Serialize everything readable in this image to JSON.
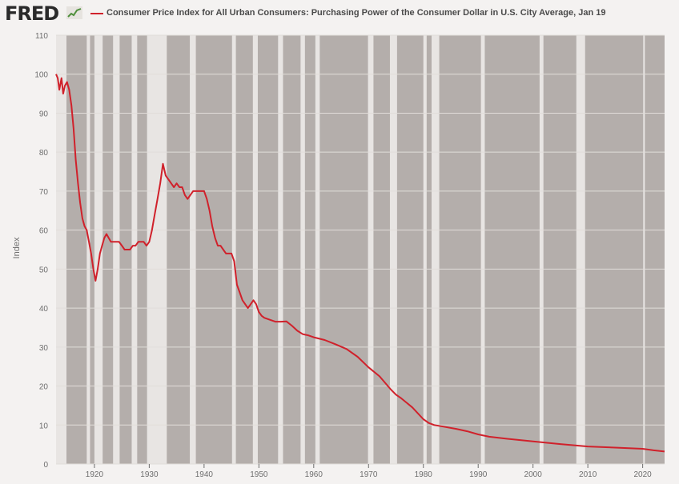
{
  "brand": {
    "logo_text": "FRED",
    "logo_icon": "fred-chart-icon"
  },
  "colors": {
    "plot_bg": "#b4aeab",
    "recession": "#e8e5e3",
    "line": "#d0212b",
    "grid": "#e1ddda",
    "axis_text": "#6e6e6e"
  },
  "chart_data": {
    "type": "line",
    "title": "Consumer Price Index for All Urban Consumers: Purchasing Power of the Consumer Dollar in U.S. City Average, Jan 19",
    "ylabel": "Index",
    "xlabel": "",
    "xlim": [
      1913,
      2024
    ],
    "ylim": [
      0,
      110
    ],
    "yticks": [
      0,
      10,
      20,
      30,
      40,
      50,
      60,
      70,
      80,
      90,
      100,
      110
    ],
    "xticks": [
      1920,
      1930,
      1940,
      1950,
      1960,
      1970,
      1980,
      1990,
      2000,
      2010,
      2020
    ],
    "grid": true,
    "legend": "top",
    "recessions": [
      [
        1913.0,
        1914.9
      ],
      [
        1918.6,
        1919.2
      ],
      [
        1920.0,
        1921.5
      ],
      [
        1923.4,
        1924.6
      ],
      [
        1926.8,
        1927.8
      ],
      [
        1929.6,
        1933.2
      ],
      [
        1937.4,
        1938.5
      ],
      [
        1945.1,
        1945.8
      ],
      [
        1948.9,
        1949.8
      ],
      [
        1953.5,
        1954.4
      ],
      [
        1957.6,
        1958.4
      ],
      [
        1960.3,
        1961.1
      ],
      [
        1969.9,
        1970.9
      ],
      [
        1973.9,
        1975.2
      ],
      [
        1980.0,
        1980.6
      ],
      [
        1981.5,
        1982.9
      ],
      [
        1990.5,
        1991.2
      ],
      [
        2001.2,
        2001.9
      ],
      [
        2007.9,
        2009.5
      ],
      [
        2020.1,
        2020.4
      ]
    ],
    "series": [
      {
        "x": [
          1913.0,
          1913.3,
          1913.6,
          1914.0,
          1914.3,
          1914.6,
          1915.0,
          1915.4,
          1915.8,
          1916.2,
          1916.6,
          1917.0,
          1917.4,
          1917.8,
          1918.2,
          1918.6,
          1919.0,
          1919.4,
          1919.8,
          1920.2,
          1920.6,
          1921.0,
          1921.4,
          1921.8,
          1922.2,
          1922.6,
          1923.0,
          1923.5,
          1924.0,
          1924.5,
          1925.0,
          1925.5,
          1926.0,
          1926.5,
          1927.0,
          1927.5,
          1928.0,
          1928.5,
          1929.0,
          1929.5,
          1930.0,
          1930.5,
          1931.0,
          1931.5,
          1932.0,
          1932.5,
          1933.0,
          1933.5,
          1934.0,
          1934.5,
          1935.0,
          1935.5,
          1936.0,
          1936.5,
          1937.0,
          1937.5,
          1938.0,
          1938.5,
          1939.0,
          1939.5,
          1940.0,
          1940.5,
          1941.0,
          1941.5,
          1942.0,
          1942.5,
          1943.0,
          1943.5,
          1944.0,
          1944.5,
          1945.0,
          1945.5,
          1946.0,
          1946.5,
          1947.0,
          1947.5,
          1948.0,
          1948.5,
          1949.0,
          1949.5,
          1950.0,
          1950.5,
          1951.0,
          1952.0,
          1953.0,
          1954.0,
          1955.0,
          1956.0,
          1957.0,
          1958.0,
          1959.0,
          1960.0,
          1962.0,
          1964.0,
          1966.0,
          1968.0,
          1970.0,
          1972.0,
          1974.0,
          1975.0,
          1976.0,
          1978.0,
          1980.0,
          1981.0,
          1982.0,
          1984.0,
          1986.0,
          1988.0,
          1990.0,
          1992.0,
          1995.0,
          2000.0,
          2005.0,
          2010.0,
          2015.0,
          2020.0,
          2022.0,
          2024.0
        ],
        "values": [
          100,
          99,
          96,
          99,
          95,
          97,
          98,
          96,
          92,
          86,
          78,
          72,
          67,
          63,
          61,
          60,
          57,
          54,
          50,
          47,
          50,
          54,
          56,
          58,
          59,
          58,
          57,
          57,
          57,
          57,
          56,
          55,
          55,
          55,
          56,
          56,
          57,
          57,
          57,
          56,
          57,
          60,
          64,
          68,
          72,
          77,
          74,
          73,
          72,
          71,
          72,
          71,
          71,
          69,
          68,
          69,
          70,
          70,
          70,
          70,
          70,
          68,
          65,
          61,
          58,
          56,
          56,
          55,
          54,
          54,
          54,
          52,
          46,
          44,
          42,
          41,
          40,
          41,
          42,
          41,
          39,
          38,
          37.5,
          37,
          36.5,
          36.5,
          36.6,
          35.5,
          34.2,
          33.3,
          33.0,
          32.5,
          31.8,
          30.7,
          29.5,
          27.5,
          24.8,
          22.5,
          19.2,
          17.8,
          16.8,
          14.5,
          11.5,
          10.5,
          10.0,
          9.5,
          9.0,
          8.4,
          7.6,
          7.0,
          6.5,
          5.8,
          5.1,
          4.5,
          4.2,
          3.9,
          3.5,
          3.2
        ]
      }
    ]
  }
}
